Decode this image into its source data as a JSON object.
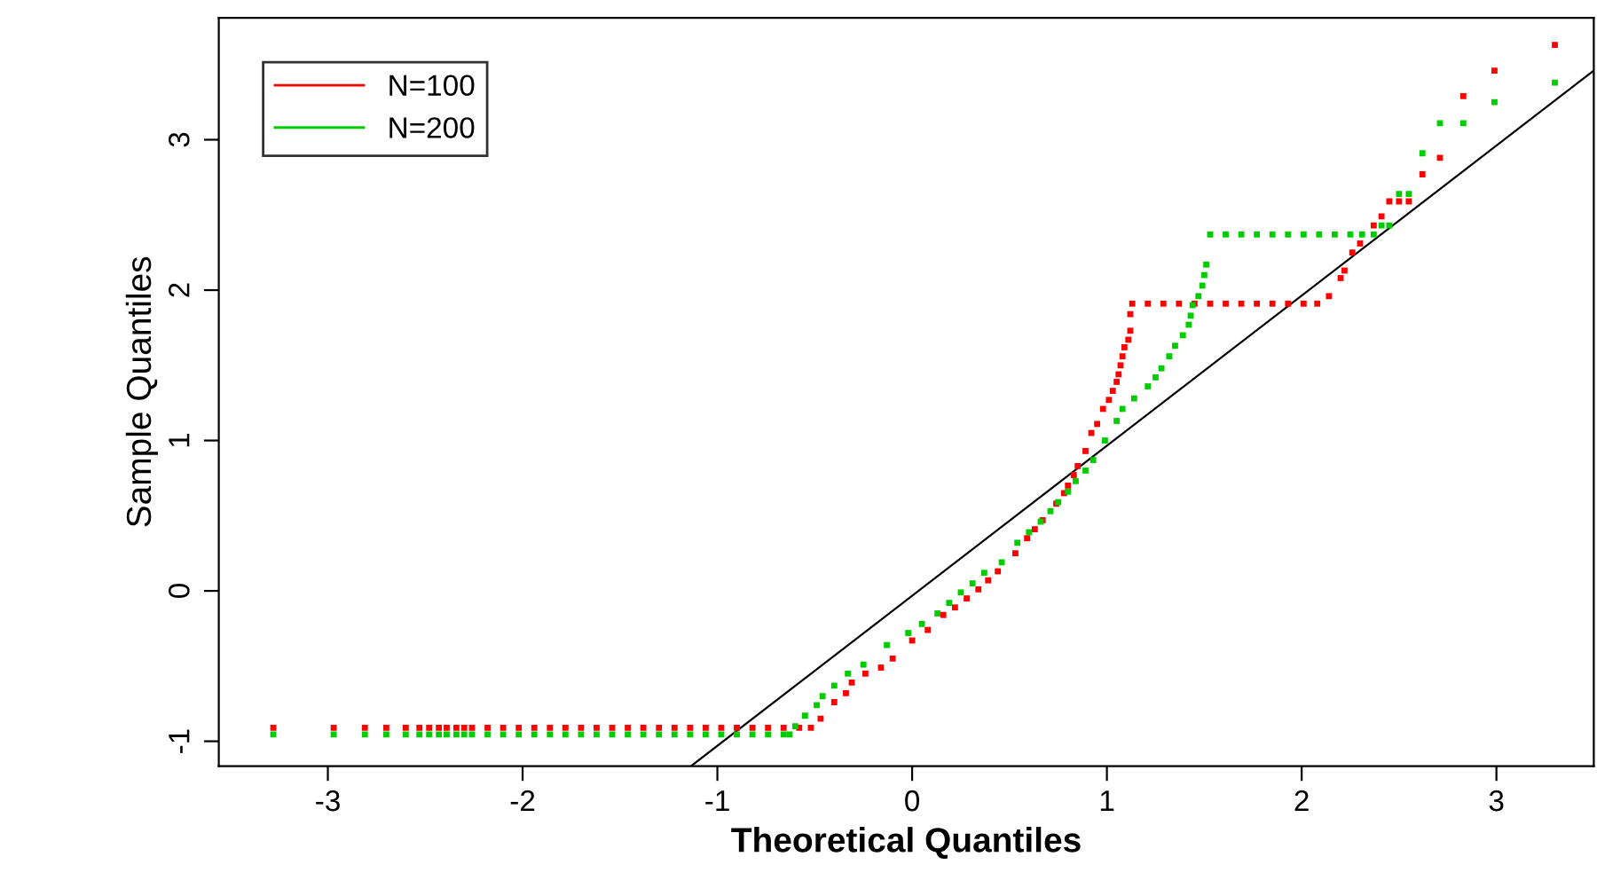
{
  "chart_data": {
    "type": "scatter",
    "xlabel": "Theoretical Quantiles",
    "ylabel": "Sample Quantiles",
    "xlim": [
      -3.56,
      3.5
    ],
    "ylim": [
      -1.165,
      3.81
    ],
    "xticks": [
      -3,
      -2,
      -1,
      0,
      1,
      2,
      3
    ],
    "yticks": [
      -1,
      0,
      1,
      2,
      3
    ],
    "grid": false,
    "legend": "top left",
    "marker": "square",
    "series": [
      {
        "name": "N=100",
        "color": "#ff0000",
        "x": [
          -3.28,
          -2.97,
          -2.81,
          -2.7,
          -2.6,
          -2.53,
          -2.48,
          -2.43,
          -2.39,
          -2.34,
          -2.3,
          -2.26,
          -2.18,
          -2.1,
          -2.02,
          -1.94,
          -1.86,
          -1.78,
          -1.7,
          -1.62,
          -1.54,
          -1.46,
          -1.38,
          -1.3,
          -1.22,
          -1.14,
          -1.06,
          -0.98,
          -0.9,
          -0.82,
          -0.74,
          -0.66,
          -0.58,
          -0.52,
          -0.47,
          -0.4,
          -0.34,
          -0.31,
          -0.24,
          -0.16,
          -0.1,
          0,
          0.08,
          0.16,
          0.22,
          0.28,
          0.34,
          0.39,
          0.44,
          0.53,
          0.59,
          0.63,
          0.67,
          0.74,
          0.78,
          0.8,
          0.83,
          0.85,
          0.89,
          0.92,
          0.95,
          0.98,
          1.01,
          1.03,
          1.05,
          1.06,
          1.07,
          1.08,
          1.09,
          1.11,
          1.12,
          1.12,
          1.13,
          1.21,
          1.29,
          1.37,
          1.45,
          1.53,
          1.61,
          1.69,
          1.77,
          1.85,
          1.93,
          2.01,
          2.08,
          2.14,
          2.2,
          2.22,
          2.26,
          2.3,
          2.37,
          2.41,
          2.45,
          2.5,
          2.55,
          2.62,
          2.71,
          2.83,
          2.99,
          3.3
        ],
        "values": [
          -0.91,
          -0.91,
          -0.91,
          -0.91,
          -0.91,
          -0.91,
          -0.91,
          -0.91,
          -0.91,
          -0.91,
          -0.91,
          -0.91,
          -0.91,
          -0.91,
          -0.91,
          -0.91,
          -0.91,
          -0.91,
          -0.91,
          -0.91,
          -0.91,
          -0.91,
          -0.91,
          -0.91,
          -0.91,
          -0.91,
          -0.91,
          -0.91,
          -0.91,
          -0.91,
          -0.91,
          -0.91,
          -0.91,
          -0.91,
          -0.85,
          -0.74,
          -0.68,
          -0.61,
          -0.55,
          -0.51,
          -0.45,
          -0.33,
          -0.26,
          -0.16,
          -0.11,
          -0.05,
          0.01,
          0.07,
          0.13,
          0.25,
          0.35,
          0.41,
          0.47,
          0.58,
          0.65,
          0.7,
          0.77,
          0.83,
          0.93,
          1.05,
          1.11,
          1.21,
          1.27,
          1.33,
          1.39,
          1.44,
          1.5,
          1.56,
          1.62,
          1.67,
          1.73,
          1.84,
          1.91,
          1.91,
          1.91,
          1.91,
          1.91,
          1.91,
          1.91,
          1.91,
          1.91,
          1.91,
          1.91,
          1.91,
          1.91,
          1.96,
          2.08,
          2.13,
          2.25,
          2.31,
          2.43,
          2.49,
          2.59,
          2.59,
          2.59,
          2.77,
          2.88,
          3.29,
          3.46,
          3.63
        ]
      },
      {
        "name": "N=200",
        "color": "#00cc00",
        "x": [
          -3.28,
          -2.97,
          -2.81,
          -2.7,
          -2.6,
          -2.53,
          -2.48,
          -2.43,
          -2.39,
          -2.34,
          -2.3,
          -2.26,
          -2.18,
          -2.1,
          -2.02,
          -1.94,
          -1.86,
          -1.78,
          -1.7,
          -1.62,
          -1.54,
          -1.46,
          -1.38,
          -1.3,
          -1.22,
          -1.14,
          -1.06,
          -0.98,
          -0.9,
          -0.82,
          -0.74,
          -0.66,
          -0.63,
          -0.6,
          -0.55,
          -0.49,
          -0.46,
          -0.4,
          -0.33,
          -0.25,
          -0.13,
          -0.02,
          0.05,
          0.13,
          0.19,
          0.25,
          0.31,
          0.37,
          0.46,
          0.54,
          0.6,
          0.66,
          0.71,
          0.75,
          0.8,
          0.84,
          0.89,
          0.93,
          0.99,
          1.05,
          1.08,
          1.14,
          1.21,
          1.25,
          1.28,
          1.32,
          1.35,
          1.39,
          1.42,
          1.43,
          1.44,
          1.47,
          1.49,
          1.5,
          1.51,
          1.53,
          1.61,
          1.69,
          1.77,
          1.85,
          1.93,
          2.01,
          2.09,
          2.17,
          2.25,
          2.31,
          2.37,
          2.41,
          2.45,
          2.5,
          2.55,
          2.62,
          2.71,
          2.83,
          2.99,
          3.3
        ],
        "values": [
          -0.955,
          -0.955,
          -0.955,
          -0.955,
          -0.955,
          -0.955,
          -0.955,
          -0.955,
          -0.955,
          -0.955,
          -0.955,
          -0.955,
          -0.955,
          -0.955,
          -0.955,
          -0.955,
          -0.955,
          -0.955,
          -0.955,
          -0.955,
          -0.955,
          -0.955,
          -0.955,
          -0.955,
          -0.955,
          -0.955,
          -0.955,
          -0.955,
          -0.955,
          -0.955,
          -0.955,
          -0.955,
          -0.955,
          -0.9,
          -0.83,
          -0.76,
          -0.7,
          -0.63,
          -0.55,
          -0.49,
          -0.36,
          -0.28,
          -0.22,
          -0.15,
          -0.08,
          -0.01,
          0.05,
          0.12,
          0.19,
          0.32,
          0.39,
          0.46,
          0.53,
          0.59,
          0.66,
          0.73,
          0.8,
          0.87,
          1.0,
          1.13,
          1.21,
          1.28,
          1.36,
          1.42,
          1.48,
          1.56,
          1.63,
          1.7,
          1.77,
          1.83,
          1.9,
          1.96,
          2.03,
          2.1,
          2.17,
          2.37,
          2.37,
          2.37,
          2.37,
          2.37,
          2.37,
          2.37,
          2.37,
          2.37,
          2.37,
          2.37,
          2.37,
          2.43,
          2.43,
          2.64,
          2.64,
          2.91,
          3.11,
          3.11,
          3.25,
          3.38
        ]
      },
      {
        "type": "line",
        "marker": "none",
        "color": "#000000",
        "x": [
          -1.13,
          3.5
        ],
        "values": [
          -1.16,
          3.46
        ]
      }
    ]
  }
}
